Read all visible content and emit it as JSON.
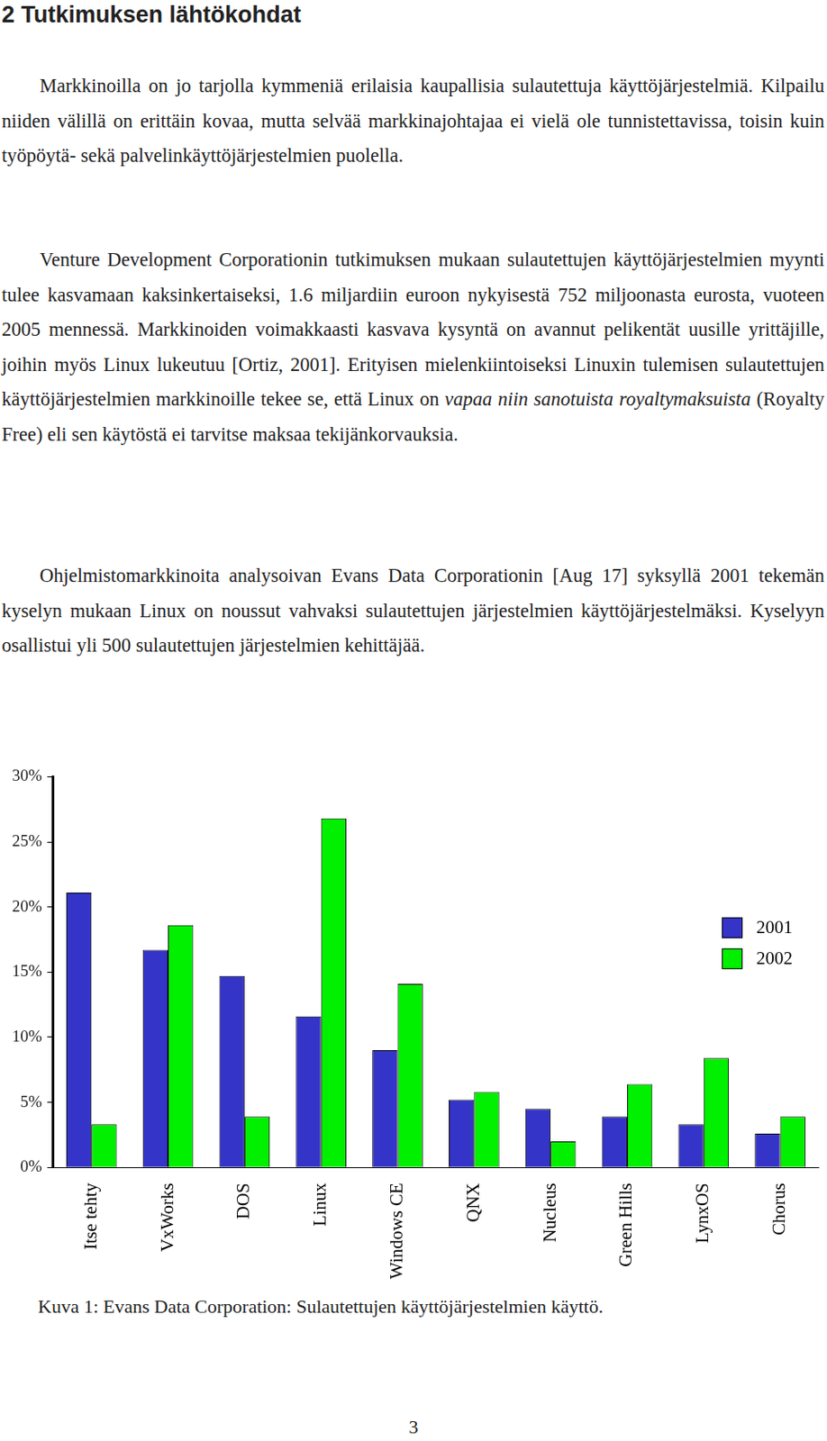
{
  "heading": "2 Tutkimuksen lähtökohdat",
  "paragraphs": [
    [
      {
        "text": "Markkinoilla on jo tarjolla kymmeniä erilaisia kaupallisia sulautettuja käyttöjärjestelmiä. Kilpailu niiden välillä on erittäin kovaa, mutta selvää markkinajohtajaa ei vielä ole tunnistettavissa, toisin kuin työpöytä- sekä palvelinkäyttöjärjestelmien puolella."
      }
    ],
    [
      {
        "text": "Venture Development Corporationin tutkimuksen mukaan sulautettujen käyttöjärjestelmien myynti tulee kasvamaan kaksinkertaiseksi, 1.6 miljardiin euroon nykyisestä 752 miljoonasta eurosta, vuoteen 2005 mennessä. Markkinoiden voimakkaasti kasvava kysyntä on avannut pelikentät uusille yrittäjille, joihin myös Linux lukeutuu [Ortiz, 2001]. Erityisen mielenkiintoiseksi Linuxin tulemisen sulautettujen käyttöjärjestelmien markkinoille tekee se, että Linux on "
      },
      {
        "text": "vapaa niin sanotuista royaltymaksuista",
        "italic": true
      },
      {
        "text": " (Royalty Free) eli sen käytöstä ei tarvitse maksaa tekijänkorvauksia."
      }
    ],
    [
      {
        "text": "Ohjelmistomarkkinoita analysoivan Evans Data Corporationin [Aug 17] syksyllä 2001 tekemän kyselyn mukaan Linux on noussut vahvaksi sulautettujen järjestelmien käyttöjärjestelmäksi. Kyselyyn osallistui yli 500 sulautettujen järjestelmien kehittäjää."
      }
    ]
  ],
  "chart_data": {
    "type": "bar",
    "categories": [
      "Itse tehty",
      "VxWorks",
      "DOS",
      "Linux",
      "Windows CE",
      "QNX",
      "Nucleus",
      "Green Hills",
      "LynxOS",
      "Chorus"
    ],
    "series": [
      {
        "name": "2001",
        "color": "#3434c8",
        "values": [
          21.1,
          16.7,
          14.7,
          11.6,
          9.0,
          5.2,
          4.5,
          3.9,
          3.3,
          2.6
        ]
      },
      {
        "name": "2002",
        "color": "#00f000",
        "values": [
          3.3,
          18.6,
          3.9,
          26.8,
          14.1,
          5.8,
          2.0,
          6.4,
          8.4,
          3.9
        ]
      }
    ],
    "ylim": [
      0,
      30
    ],
    "yticks": [
      {
        "value": 0,
        "label": "0%"
      },
      {
        "value": 5,
        "label": "5%"
      },
      {
        "value": 10,
        "label": "10%"
      },
      {
        "value": 15,
        "label": "15%"
      },
      {
        "value": 20,
        "label": "20%"
      },
      {
        "value": 25,
        "label": "25%"
      },
      {
        "value": 30,
        "label": "30%"
      }
    ],
    "grid": false,
    "legend": "right"
  },
  "caption": "Kuva 1: Evans Data Corporation: Sulautettujen käyttöjärjestelmien käyttö.",
  "page_number": "3"
}
